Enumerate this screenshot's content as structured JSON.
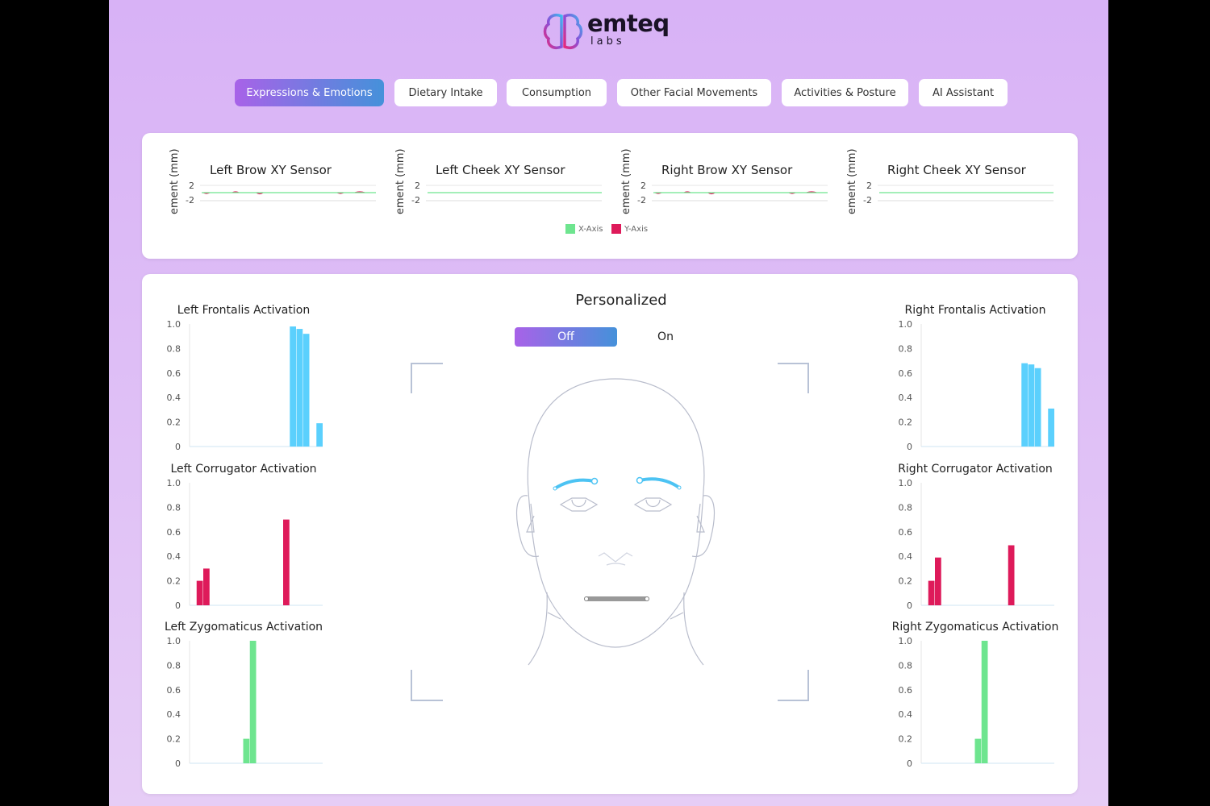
{
  "brand": {
    "name": "emteq",
    "sub": "labs"
  },
  "tabs": [
    {
      "label": "Expressions & Emotions",
      "active": true
    },
    {
      "label": "Dietary Intake"
    },
    {
      "label": "Consumption"
    },
    {
      "label": "Other Facial Movements"
    },
    {
      "label": "Activities & Posture"
    },
    {
      "label": "AI Assistant"
    }
  ],
  "sensors": {
    "ylabel": "ement (mm)",
    "yticks": [
      "2",
      "-2"
    ],
    "charts": [
      {
        "title": "Left Brow XY Sensor"
      },
      {
        "title": "Left Cheek XY Sensor"
      },
      {
        "title": "Right Brow XY Sensor"
      },
      {
        "title": "Right Cheek XY Sensor"
      }
    ],
    "legend": [
      {
        "label": "X-Axis",
        "color": "#6ee58f"
      },
      {
        "label": "Y-Axis",
        "color": "#de1a5a"
      }
    ]
  },
  "personalized": {
    "title": "Personalized",
    "off": "Off",
    "on": "On",
    "selected": "Off"
  },
  "chart_data": [
    {
      "type": "bar",
      "title": "Left Frontalis Activation",
      "ylim": [
        0,
        1
      ],
      "yticks": [
        "0",
        "0.2",
        "0.4",
        "0.6",
        "0.8",
        "1.0"
      ],
      "color": "#5bd0fd",
      "values": [
        0,
        0,
        0,
        0,
        0,
        0,
        0,
        0,
        0,
        0,
        0,
        0,
        0,
        0,
        0,
        0.98,
        0.96,
        0.92,
        0,
        0.19
      ]
    },
    {
      "type": "bar",
      "title": "Left Corrugator Activation",
      "ylim": [
        0,
        1
      ],
      "yticks": [
        "0",
        "0.2",
        "0.4",
        "0.6",
        "0.8",
        "1.0"
      ],
      "color": "#de1a5a",
      "values": [
        0,
        0.2,
        0.3,
        0,
        0,
        0,
        0,
        0,
        0,
        0,
        0,
        0,
        0,
        0,
        0.7,
        0,
        0,
        0,
        0,
        0
      ]
    },
    {
      "type": "bar",
      "title": "Left Zygomaticus Activation",
      "ylim": [
        0,
        1
      ],
      "yticks": [
        "0",
        "0.2",
        "0.4",
        "0.6",
        "0.8",
        "1.0"
      ],
      "color": "#6ee58f",
      "values": [
        0,
        0,
        0,
        0,
        0,
        0,
        0,
        0,
        0.2,
        1.0,
        0,
        0,
        0,
        0,
        0,
        0,
        0,
        0,
        0,
        0
      ]
    },
    {
      "type": "bar",
      "title": "Right Frontalis Activation",
      "ylim": [
        0,
        1
      ],
      "yticks": [
        "0",
        "0.2",
        "0.4",
        "0.6",
        "0.8",
        "1.0"
      ],
      "color": "#5bd0fd",
      "values": [
        0,
        0,
        0,
        0,
        0,
        0,
        0,
        0,
        0,
        0,
        0,
        0,
        0,
        0,
        0,
        0.68,
        0.67,
        0.64,
        0,
        0.31
      ]
    },
    {
      "type": "bar",
      "title": "Right Corrugator Activation",
      "ylim": [
        0,
        1
      ],
      "yticks": [
        "0",
        "0.2",
        "0.4",
        "0.6",
        "0.8",
        "1.0"
      ],
      "color": "#de1a5a",
      "values": [
        0,
        0.2,
        0.39,
        0,
        0,
        0,
        0,
        0,
        0,
        0,
        0,
        0,
        0,
        0.49,
        0,
        0,
        0,
        0,
        0,
        0
      ]
    },
    {
      "type": "bar",
      "title": "Right Zygomaticus Activation",
      "ylim": [
        0,
        1
      ],
      "yticks": [
        "0",
        "0.2",
        "0.4",
        "0.6",
        "0.8",
        "1.0"
      ],
      "color": "#6ee58f",
      "values": [
        0,
        0,
        0,
        0,
        0,
        0,
        0,
        0,
        0.2,
        1.0,
        0,
        0,
        0,
        0,
        0,
        0,
        0,
        0,
        0,
        0
      ]
    }
  ]
}
